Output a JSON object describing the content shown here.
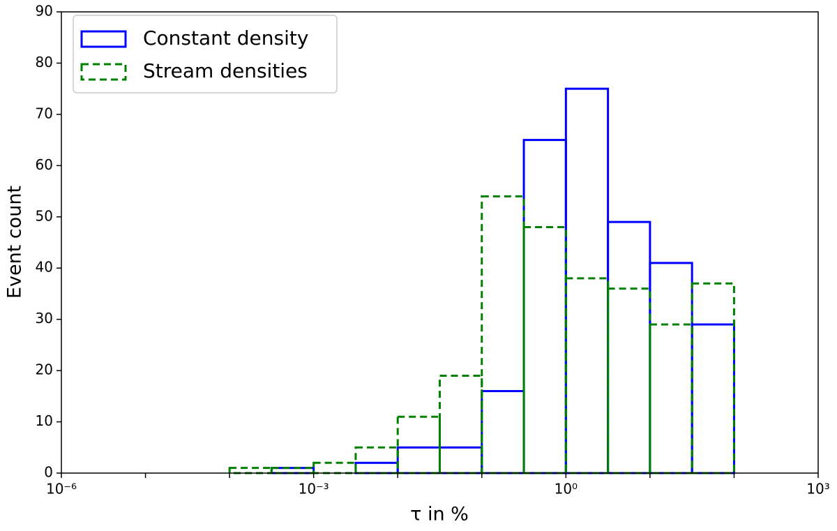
{
  "chart_data": {
    "type": "histogram",
    "xlabel": "τ in %",
    "ylabel": "Event count",
    "xscale": "log",
    "bins": [
      0.0001,
      0.00031623,
      0.001,
      0.0031623,
      0.01,
      0.031623,
      0.1,
      0.31623,
      1,
      3.1623,
      10,
      31.623,
      100
    ],
    "series": [
      {
        "name": "Constant density",
        "color": "#0000ff",
        "dashed": false,
        "values": [
          0,
          1,
          0,
          2,
          5,
          5,
          16,
          65,
          75,
          49,
          41,
          29
        ]
      },
      {
        "name": "Stream densities",
        "color": "#008000",
        "dashed": true,
        "values": [
          1,
          1,
          2,
          5,
          11,
          19,
          54,
          48,
          38,
          36,
          29,
          37
        ]
      }
    ],
    "xlim": [
      1e-06,
      1000
    ],
    "ylim": [
      0,
      90
    ],
    "xticks": [
      {
        "value": 1e-06,
        "label": "10⁻⁶"
      },
      {
        "value": 0.001,
        "label": "10⁻³"
      },
      {
        "value": 1,
        "label": "10⁰"
      },
      {
        "value": 1000,
        "label": "10³"
      }
    ],
    "xminorticks": [
      1e-05,
      0.0001,
      0.01,
      0.1,
      10,
      100
    ],
    "yticks": [
      0,
      10,
      20,
      30,
      40,
      50,
      60,
      70,
      80,
      90
    ],
    "grid": false,
    "legend": "upper left"
  }
}
